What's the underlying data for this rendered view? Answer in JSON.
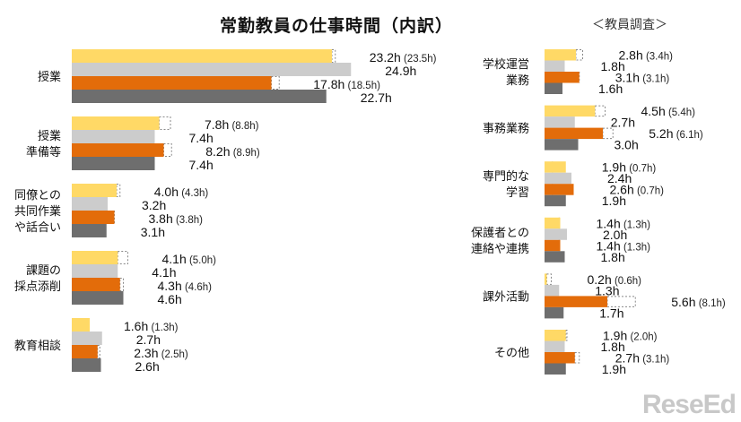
{
  "chart_data": {
    "type": "bar",
    "orientation": "horizontal",
    "title": "常勤教員の仕事時間（内訳）",
    "subtitle": "＜教員調査＞",
    "unit": "h",
    "series_colors": [
      "#FFD966",
      "#CCCCCC",
      "#E36C0A",
      "#6E6E6E"
    ],
    "panels": [
      {
        "categories": [
          {
            "label": [
              "授業"
            ],
            "values": [
              23.2,
              24.9,
              17.8,
              22.7
            ],
            "paren": [
              23.5,
              null,
              18.5,
              null
            ]
          },
          {
            "label": [
              "授業",
              "準備等"
            ],
            "values": [
              7.8,
              7.4,
              8.2,
              7.4
            ],
            "paren": [
              8.8,
              null,
              8.9,
              null
            ]
          },
          {
            "label": [
              "同僚との",
              "共同作業",
              "や話合い"
            ],
            "values": [
              4.0,
              3.2,
              3.8,
              3.1
            ],
            "paren": [
              4.3,
              null,
              3.8,
              null
            ]
          },
          {
            "label": [
              "課題の",
              "採点添削"
            ],
            "values": [
              4.1,
              4.1,
              4.3,
              4.6
            ],
            "paren": [
              5.0,
              null,
              4.6,
              null
            ]
          },
          {
            "label": [
              "教育相談"
            ],
            "values": [
              1.6,
              2.7,
              2.3,
              2.6
            ],
            "paren": [
              1.3,
              null,
              2.5,
              null
            ]
          }
        ]
      },
      {
        "categories": [
          {
            "label": [
              "学校運営",
              "業務"
            ],
            "values": [
              2.8,
              1.8,
              3.1,
              1.6
            ],
            "paren": [
              3.4,
              null,
              3.1,
              null
            ]
          },
          {
            "label": [
              "事務業務"
            ],
            "values": [
              4.5,
              2.7,
              5.2,
              3.0
            ],
            "paren": [
              5.4,
              null,
              6.1,
              null
            ]
          },
          {
            "label": [
              "専門的な",
              "学習"
            ],
            "values": [
              1.9,
              2.4,
              2.6,
              1.9
            ],
            "paren": [
              0.7,
              null,
              0.7,
              null
            ]
          },
          {
            "label": [
              "保護者との",
              "連絡や連携"
            ],
            "values": [
              1.4,
              2.0,
              1.4,
              1.8
            ],
            "paren": [
              1.3,
              null,
              1.3,
              null
            ]
          },
          {
            "label": [
              "課外活動"
            ],
            "values": [
              0.2,
              1.3,
              5.6,
              1.7
            ],
            "paren": [
              0.6,
              null,
              8.1,
              null
            ]
          },
          {
            "label": [
              "その他"
            ],
            "values": [
              1.9,
              1.8,
              2.7,
              1.9
            ],
            "paren": [
              2.0,
              null,
              3.1,
              null
            ]
          }
        ]
      }
    ]
  },
  "watermark": "ReseEd"
}
